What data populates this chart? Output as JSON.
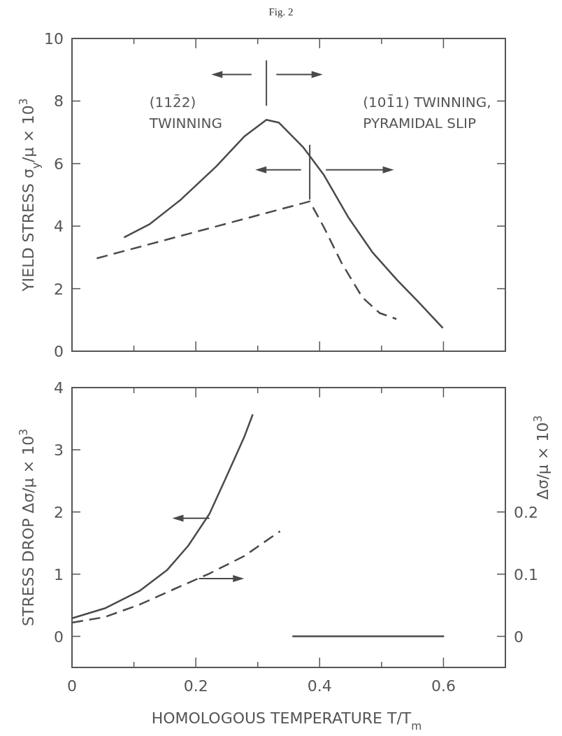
{
  "chart_data": [
    {
      "type": "line",
      "title": "Fig. 2",
      "ylabel": "YIELD STRESS σ$_{y}$/μ × 10$^{3}$",
      "annotations": [
        "(112̄2)\nTWINNING",
        "(101̄1) TWINNING,\nPYRAMIDAL SLIP"
      ],
      "xlim": [
        0,
        0.7
      ],
      "xticks": [
        0.1,
        0.2,
        0.3,
        0.4,
        0.5,
        0.6
      ],
      "ylim": [
        0,
        10
      ],
      "yticks": [
        0,
        2,
        4,
        6,
        8,
        10
      ],
      "tick_labels": "y",
      "grid": false,
      "series": [
        {
          "color": "#4a4a4a",
          "line_style": "solid",
          "x": [
            0.084,
            0.126,
            0.176,
            0.233,
            0.278,
            0.314,
            0.334,
            0.373,
            0.407,
            0.446,
            0.485,
            0.525,
            0.558,
            0.599
          ],
          "values": [
            3.64,
            4.07,
            4.85,
            5.91,
            6.86,
            7.4,
            7.31,
            6.53,
            5.63,
            4.29,
            3.17,
            2.28,
            1.61,
            0.74
          ]
        },
        {
          "color": "#4a4a4a",
          "line_style": "dashed",
          "x": [
            0.04,
            0.384,
            0.407,
            0.435,
            0.469,
            0.497,
            0.524
          ],
          "values": [
            2.97,
            4.79,
            3.96,
            2.84,
            1.72,
            1.22,
            1.03
          ]
        }
      ]
    },
    {
      "type": "line",
      "xlabel": "HOMOLOGOUS TEMPERATURE T/T$_{m}$",
      "ylabel": "STRESS DROP Δσ/μ × 10$^{3}$",
      "y2label": "Δσ/μ × 10$^{3}$",
      "xlim": [
        0,
        0.7
      ],
      "xticks": [
        0,
        {
          "value": 0.1,
          "label": null
        },
        0.2,
        {
          "value": 0.3,
          "label": null
        },
        0.4,
        {
          "value": 0.5,
          "label": null
        },
        0.6
      ],
      "ylim": [
        -0.5,
        4
      ],
      "yticks": [
        0,
        1,
        2,
        3,
        4
      ],
      "y2lim": [
        -0.05,
        0.4
      ],
      "y2ticks": [
        0,
        0.1,
        0.2
      ],
      "grid": false,
      "series": [
        {
          "color": "#4a4a4a",
          "line_style": "solid",
          "x": [
            0,
            0.053,
            0.109,
            0.154,
            0.188,
            0.222,
            0.25,
            0.278,
            0.292
          ],
          "values": [
            0.29,
            0.45,
            0.73,
            1.07,
            1.46,
            1.97,
            2.58,
            3.2,
            3.57
          ]
        },
        {
          "color": "#4a4a4a",
          "line_style": "dashed",
          "axis": "y2",
          "x": [
            0,
            0.053,
            0.109,
            0.165,
            0.222,
            0.278,
            0.336
          ],
          "values": [
            0.022,
            0.031,
            0.051,
            0.076,
            0.101,
            0.129,
            0.169
          ]
        },
        {
          "color": "#4a4a4a",
          "line_style": "solid",
          "x": [
            0.356,
            0.601
          ],
          "values": [
            0,
            0
          ]
        }
      ]
    }
  ]
}
